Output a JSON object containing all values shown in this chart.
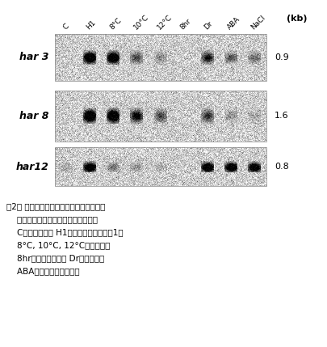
{
  "fig_width": 4.05,
  "fig_height": 4.29,
  "dpi": 100,
  "white_bg": "#ffffff",
  "column_labels": [
    "C",
    "H1",
    "8°C",
    "10°C",
    "12°C",
    "8hr",
    "Dr",
    "ABA",
    "NaCl"
  ],
  "kb_label": "(kb)",
  "rows": [
    {
      "gene": "har 3",
      "kb_value": "0.9",
      "bands": [
        {
          "col": 0,
          "intensity": 0.0
        },
        {
          "col": 1,
          "intensity": 0.95
        },
        {
          "col": 2,
          "intensity": 0.9
        },
        {
          "col": 3,
          "intensity": 0.35
        },
        {
          "col": 4,
          "intensity": 0.18
        },
        {
          "col": 5,
          "intensity": 0.0
        },
        {
          "col": 6,
          "intensity": 0.5
        },
        {
          "col": 7,
          "intensity": 0.3
        },
        {
          "col": 8,
          "intensity": 0.25
        }
      ]
    },
    {
      "gene": "har 8",
      "kb_value": "1.6",
      "bands": [
        {
          "col": 0,
          "intensity": 0.0
        },
        {
          "col": 1,
          "intensity": 0.95
        },
        {
          "col": 2,
          "intensity": 0.9
        },
        {
          "col": 3,
          "intensity": 0.6
        },
        {
          "col": 4,
          "intensity": 0.35
        },
        {
          "col": 5,
          "intensity": 0.0
        },
        {
          "col": 6,
          "intensity": 0.4
        },
        {
          "col": 7,
          "intensity": 0.15
        },
        {
          "col": 8,
          "intensity": 0.1
        }
      ]
    },
    {
      "gene": "har12",
      "kb_value": "0.8",
      "bands": [
        {
          "col": 0,
          "intensity": 0.1
        },
        {
          "col": 1,
          "intensity": 0.88
        },
        {
          "col": 2,
          "intensity": 0.22
        },
        {
          "col": 3,
          "intensity": 0.15
        },
        {
          "col": 4,
          "intensity": 0.08
        },
        {
          "col": 5,
          "intensity": 0.0
        },
        {
          "col": 6,
          "intensity": 0.88
        },
        {
          "col": 7,
          "intensity": 0.88
        },
        {
          "col": 8,
          "intensity": 0.82
        }
      ]
    }
  ],
  "caption_lines": [
    "図2． ハードニング誤導との関与する処理",
    "    及びストレスに対する発現パターン",
    "    C：無処理　　 H1：ハードニング処焆1日",
    "    8°C, 10°C, 12°C：低温処理",
    "    8hr：短日処理　　 Dr：乾燥処理",
    "    ABA：アブシジン酸処理"
  ]
}
